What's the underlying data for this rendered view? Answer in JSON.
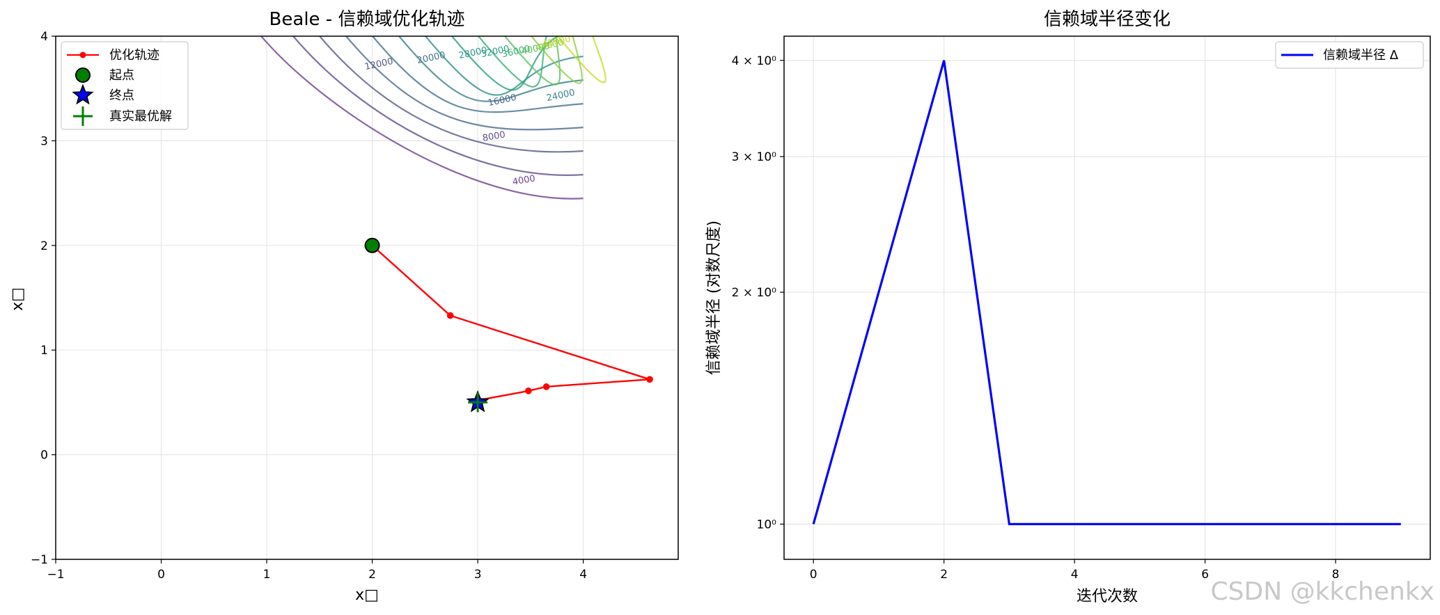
{
  "watermark": "CSDN @kkchenkx",
  "chart_data": [
    {
      "type": "line",
      "title": "Beale - 信赖域优化轨迹",
      "xlabel": "x□",
      "ylabel": "x□",
      "xlim": [
        -1,
        4.9
      ],
      "ylim": [
        -1,
        4
      ],
      "xticks": [
        -1,
        0,
        1,
        2,
        3,
        4
      ],
      "yticks": [
        -1,
        0,
        1,
        2,
        3,
        4
      ],
      "grid": true,
      "legend_position": "top-left",
      "series": [
        {
          "name": "优化轨迹",
          "color": "#ff0000",
          "points": [
            [
              2.0,
              2.0
            ],
            [
              2.74,
              1.33
            ],
            [
              4.63,
              0.72
            ],
            [
              3.65,
              0.65
            ],
            [
              3.48,
              0.61
            ],
            [
              3.0,
              0.52
            ],
            [
              3.0,
              0.5
            ]
          ]
        }
      ],
      "markers": [
        {
          "name": "起点",
          "shape": "circle",
          "color": "#008000",
          "x": 2.0,
          "y": 2.0
        },
        {
          "name": "终点",
          "shape": "star",
          "color": "#0000ff",
          "x": 3.0,
          "y": 0.5
        },
        {
          "name": "真实最优解",
          "shape": "plus",
          "color": "#008000",
          "x": 3.0,
          "y": 0.5
        }
      ],
      "contours": {
        "type": "contour",
        "labels": [
          "4000",
          "8000",
          "12000",
          "16000",
          "20000",
          "24000",
          "28000",
          "32000",
          "36000",
          "40000",
          "44000",
          "48000"
        ]
      }
    },
    {
      "type": "line",
      "title": "信赖域半径变化",
      "xlabel": "迭代次数",
      "ylabel": "信赖域半径 (对数尺度)",
      "yscale": "log",
      "xlim": [
        -0.45,
        9.45
      ],
      "ylim": [
        0.9,
        4.3
      ],
      "xticks": [
        0,
        2,
        4,
        6,
        8
      ],
      "yticks": [
        {
          "value": 1,
          "label": "10⁰"
        },
        {
          "value": 2,
          "label": "2 × 10⁰"
        },
        {
          "value": 3,
          "label": "3 × 10⁰"
        },
        {
          "value": 4,
          "label": "4 × 10⁰"
        }
      ],
      "grid": true,
      "legend_position": "top-right",
      "series": [
        {
          "name": "信赖域半径 Δ",
          "color": "#0000ff",
          "x": [
            0,
            1,
            2,
            3,
            4,
            5,
            6,
            7,
            8,
            9
          ],
          "values": [
            1.0,
            2.0,
            4.0,
            1.0,
            1.0,
            1.0,
            1.0,
            1.0,
            1.0,
            1.0
          ]
        }
      ]
    }
  ]
}
